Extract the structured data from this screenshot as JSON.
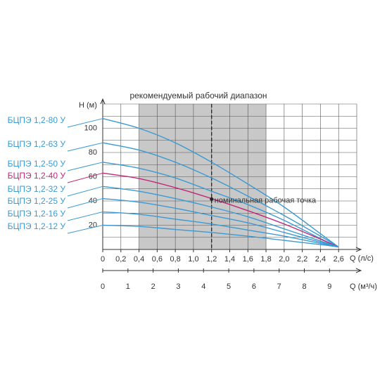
{
  "chart_data": {
    "type": "line",
    "title": "рекомендуемый рабочий диапазон",
    "y_label": "Н (м)",
    "x_label": "Q (л/с)",
    "x2_label": "Q (м³/ч)",
    "x": [
      0,
      0.4,
      0.8,
      1.2,
      1.6,
      2.0,
      2.4,
      2.6
    ],
    "series": [
      {
        "name": "БЦПЭ 1,2-80 У",
        "color": "#3b9ad2",
        "values": [
          108,
          100,
          88,
          72,
          54,
          35,
          13,
          2
        ]
      },
      {
        "name": "БЦПЭ 1,2-63 У",
        "color": "#3b9ad2",
        "values": [
          88,
          82,
          72,
          59,
          44,
          28,
          11,
          2
        ]
      },
      {
        "name": "БЦПЭ 1,2-50 У",
        "color": "#3b9ad2",
        "values": [
          72,
          67,
          59,
          48,
          37,
          24,
          9,
          2
        ]
      },
      {
        "name": "БЦПЭ 1,2-40 У",
        "color": "#c2277a",
        "values": [
          63,
          58.5,
          51,
          42,
          32,
          21,
          8.5,
          2
        ]
      },
      {
        "name": "БЦПЭ 1,2-32 У",
        "color": "#3b9ad2",
        "values": [
          52,
          48,
          42,
          35,
          27,
          17,
          7,
          2
        ]
      },
      {
        "name": "БЦПЭ 1,2-25 У",
        "color": "#3b9ad2",
        "values": [
          42,
          39,
          34,
          28,
          22,
          14,
          6,
          2
        ]
      },
      {
        "name": "БЦПЭ 1,2-16 У",
        "color": "#3b9ad2",
        "values": [
          31,
          29,
          25,
          21,
          16,
          11,
          5,
          2
        ]
      },
      {
        "name": "БЦПЭ 1,2-12 У",
        "color": "#3b9ad2",
        "values": [
          20,
          19,
          16.5,
          14,
          11,
          7.5,
          4,
          2
        ]
      }
    ],
    "xlim": [
      0,
      2.8
    ],
    "xticks": [
      0,
      {
        "value": 0.2,
        "label": "0,2"
      },
      {
        "value": 0.4,
        "label": "0,4"
      },
      {
        "value": 0.6,
        "label": "0,6"
      },
      {
        "value": 0.8,
        "label": "0,8"
      },
      {
        "value": 1.0,
        "label": "1,0"
      },
      {
        "value": 1.2,
        "label": "1,2"
      },
      {
        "value": 1.4,
        "label": "1,4"
      },
      {
        "value": 1.6,
        "label": "1,6"
      },
      {
        "value": 1.8,
        "label": "1,8"
      },
      {
        "value": 2.0,
        "label": "2,0"
      },
      {
        "value": 2.2,
        "label": "2,2"
      },
      {
        "value": 2.4,
        "label": "2,4"
      },
      {
        "value": 2.6,
        "label": "2,6"
      }
    ],
    "x2lim": [
      0,
      10.08
    ],
    "x2ticks": [
      0,
      1,
      2,
      3,
      4,
      5,
      6,
      7,
      8,
      9
    ],
    "ylim": [
      0,
      120
    ],
    "yticks": [
      20,
      40,
      60,
      80,
      100
    ],
    "grid": true,
    "minor_grid": true,
    "range": [
      0.4,
      1.8
    ],
    "range_color": "#c8c8c8",
    "point": {
      "x": 1.2,
      "y": 41.5,
      "label": "номинальная рабочая точка"
    }
  }
}
